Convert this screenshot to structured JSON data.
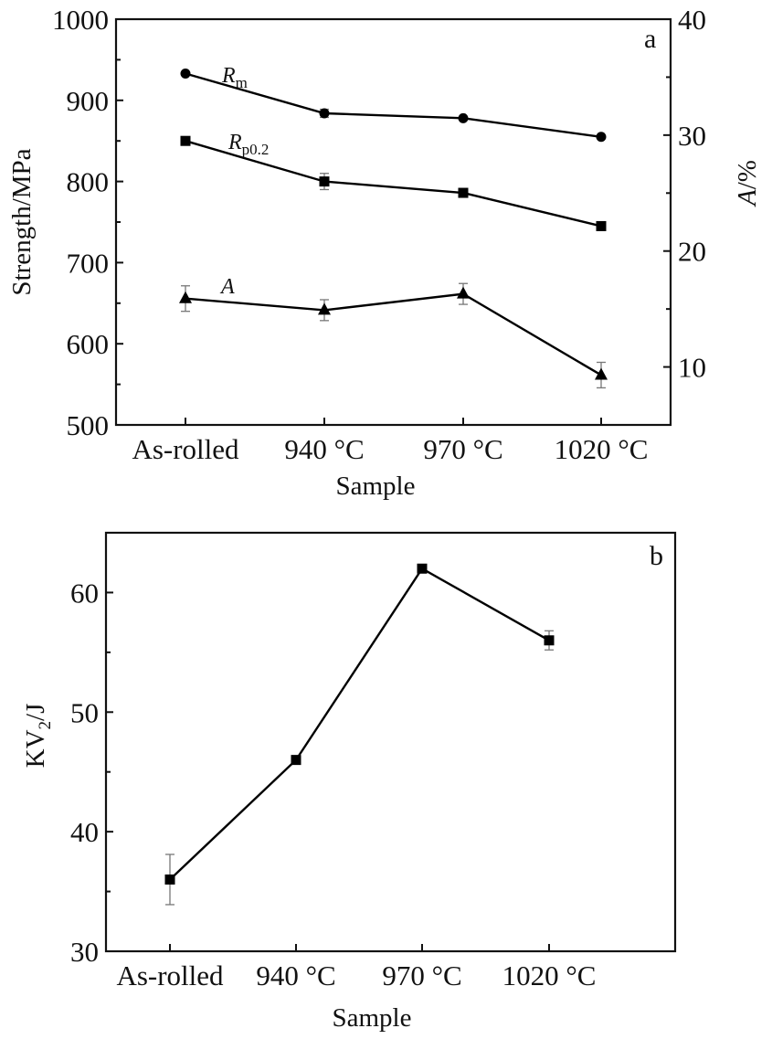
{
  "chart_data": [
    {
      "panel": "a",
      "type": "line",
      "title": "",
      "xlabel": "Sample",
      "ylabel": "Strength/MPa",
      "y2label": "A/%",
      "categories": [
        "As-rolled",
        "940 °C",
        "970 °C",
        "1020 °C"
      ],
      "ylim": [
        500,
        1000
      ],
      "yticks": [
        500,
        600,
        700,
        800,
        900,
        1000
      ],
      "y2lim": [
        5,
        40
      ],
      "y2ticks": [
        10,
        20,
        30,
        40
      ],
      "grid": false,
      "series": [
        {
          "name": "Rm",
          "label_main": "R",
          "label_sub": "m",
          "axis": "left",
          "marker": "circle",
          "values": [
            933,
            884,
            878,
            855
          ],
          "errors": [
            0,
            5,
            0,
            0
          ]
        },
        {
          "name": "Rp0.2",
          "label_main": "R",
          "label_sub": "p0.2",
          "axis": "left",
          "marker": "square",
          "values": [
            850,
            800,
            786,
            745
          ],
          "errors": [
            0,
            10,
            0,
            0
          ]
        },
        {
          "name": "A",
          "label_main": "A",
          "label_sub": "",
          "axis": "right",
          "marker": "triangle",
          "values": [
            15.9,
            14.9,
            16.3,
            9.3
          ],
          "errors": [
            1.1,
            0.9,
            0.9,
            1.1
          ]
        }
      ]
    },
    {
      "panel": "b",
      "type": "line",
      "title": "",
      "xlabel": "Sample",
      "ylabel_main": "KV",
      "ylabel_sub": "2",
      "ylabel_tail": "/J",
      "ylabel": "KV2/J",
      "categories": [
        "As-rolled",
        "940 °C",
        "970 °C",
        "1020 °C"
      ],
      "ylim": [
        30,
        65
      ],
      "yticks": [
        30,
        40,
        50,
        60
      ],
      "grid": false,
      "series": [
        {
          "name": "KV2",
          "marker": "square",
          "values": [
            36,
            46,
            62,
            56
          ],
          "errors": [
            2.1,
            0.3,
            0.3,
            0.8
          ]
        }
      ]
    }
  ]
}
